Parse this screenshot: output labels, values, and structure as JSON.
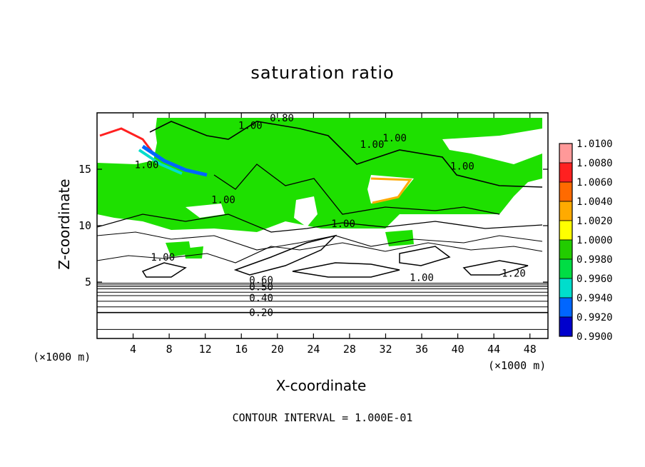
{
  "chart_data": {
    "type": "heatmap",
    "title": "saturation ratio",
    "xlabel": "X-coordinate",
    "ylabel": "Z-coordinate",
    "x_unit": "(×1000 m)",
    "footer": "CONTOUR INTERVAL = 1.000E-01",
    "xlim": [
      0,
      50
    ],
    "ylim": [
      0,
      20
    ],
    "x_ticks": [
      4,
      8,
      12,
      16,
      20,
      24,
      28,
      32,
      36,
      40,
      44,
      48
    ],
    "y_ticks": [
      5,
      10,
      15
    ],
    "colorbar": {
      "levels": [
        "1.0100",
        "1.0080",
        "1.0060",
        "1.0040",
        "1.0020",
        "1.0000",
        "0.9980",
        "0.9960",
        "0.9940",
        "0.9920",
        "0.9900"
      ],
      "colors": [
        "#ff9999",
        "#ff2020",
        "#ff6a00",
        "#ffaa00",
        "#ffff00",
        "#22cc00",
        "#00dd44",
        "#00ddcc",
        "#0066ff",
        "#0000cc",
        "#6600aa"
      ]
    },
    "contour_labels": [
      {
        "text": "0.80",
        "x": 20.5,
        "z": 19.55
      },
      {
        "text": "1.00",
        "x": 17,
        "z": 18.9
      },
      {
        "text": "1.00",
        "x": 33,
        "z": 17.8
      },
      {
        "text": "1.00",
        "x": 30.5,
        "z": 17.2
      },
      {
        "text": "1.00",
        "x": 5.5,
        "z": 15.4
      },
      {
        "text": "1.00",
        "x": 40.5,
        "z": 15.3
      },
      {
        "text": "1.00",
        "x": 14,
        "z": 12.3
      },
      {
        "text": "1.00",
        "x": 27.3,
        "z": 10.2
      },
      {
        "text": "1.00",
        "x": 7.3,
        "z": 7.2
      },
      {
        "text": "1.00",
        "x": 36,
        "z": 5.4
      },
      {
        "text": "1.20",
        "x": 46.2,
        "z": 5.8
      },
      {
        "text": "0.60",
        "x": 18.2,
        "z": 5.2
      },
      {
        "text": "0.50",
        "x": 18.2,
        "z": 4.6
      },
      {
        "text": "0.40",
        "x": 18.2,
        "z": 3.6
      },
      {
        "text": "0.20",
        "x": 18.2,
        "z": 2.3
      }
    ],
    "stable_contours_z": [
      0.8,
      2.3,
      2.8,
      3.3,
      3.8,
      4.1,
      4.4,
      4.6,
      4.75,
      4.9
    ],
    "grid": false,
    "legend": "right"
  }
}
